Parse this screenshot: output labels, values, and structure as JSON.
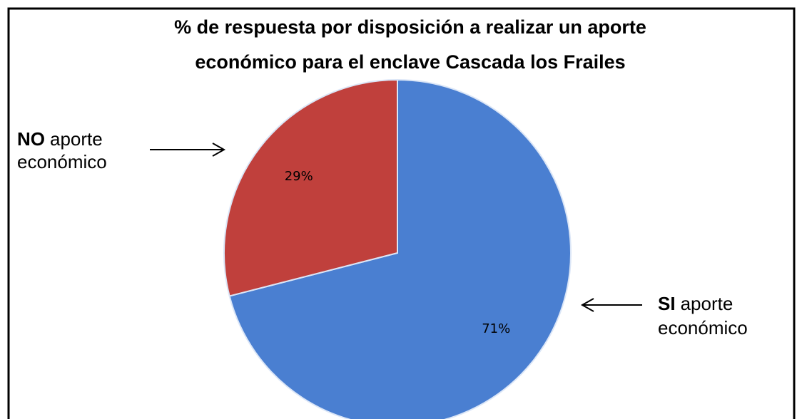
{
  "chart_data": {
    "type": "pie",
    "title": [
      "% de respuesta por disposición a realizar un aporte",
      "económico para el enclave Cascada los Frailes"
    ],
    "categories": [
      "SI",
      "NO"
    ],
    "annotations": [
      [
        "aporte",
        "económico"
      ],
      [
        "aporte",
        "económico"
      ]
    ],
    "values": [
      71,
      29
    ],
    "value_labels": [
      "71%",
      "29%"
    ],
    "colors": [
      "#4a7fd1",
      "#c0403c"
    ]
  }
}
